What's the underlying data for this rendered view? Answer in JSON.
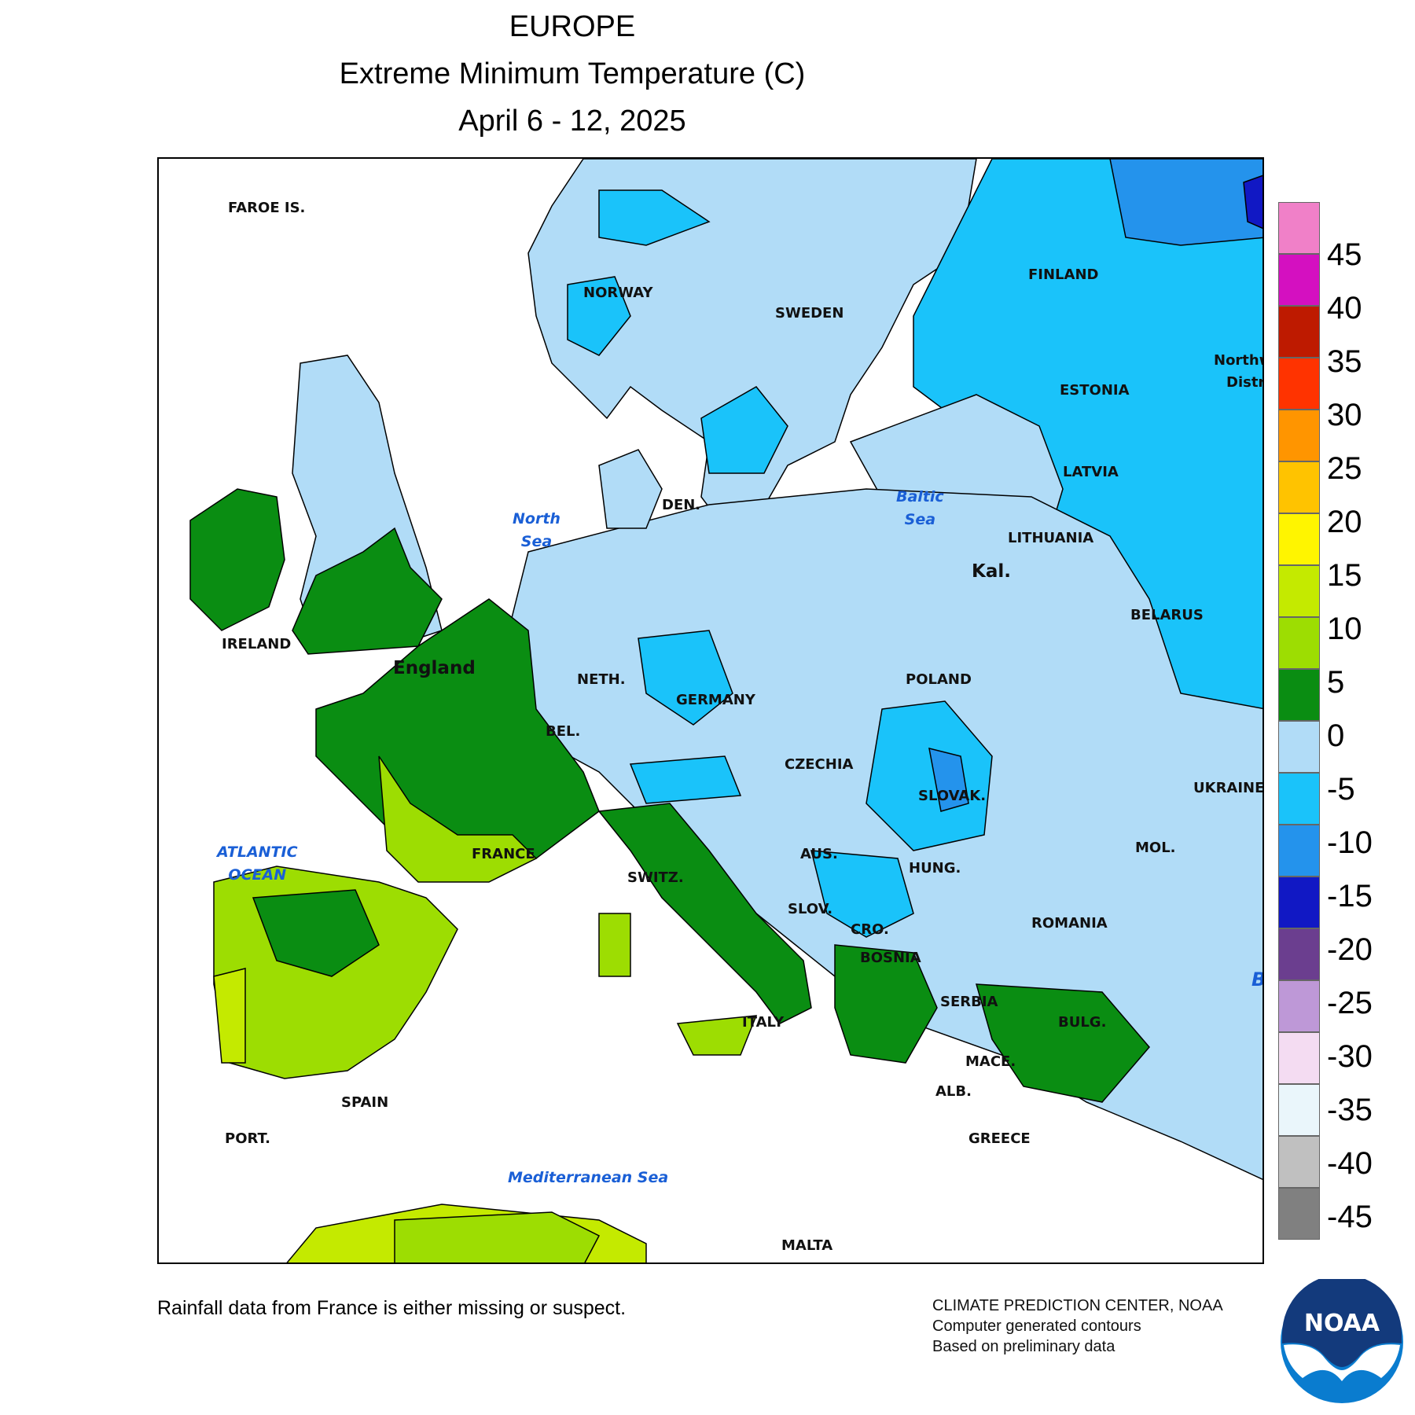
{
  "title": {
    "line1": "EUROPE",
    "line2": "Extreme Minimum Temperature (C)",
    "line3": "April 6 - 12, 2025"
  },
  "map": {
    "countries": [
      "FAROE IS.",
      "NORWAY",
      "SWEDEN",
      "FINLAND",
      "ESTONIA",
      "LATVIA",
      "LITHUANIA",
      "Kal.",
      "BELARUS",
      "DEN.",
      "IRELAND",
      "England",
      "NETH.",
      "BEL.",
      "GERMANY",
      "POLAND",
      "CZECHIA",
      "SLOVAK.",
      "UKRAINE",
      "MOL.",
      "AUS.",
      "HUNG.",
      "SWITZ.",
      "FRANCE",
      "SLOV.",
      "CRO.",
      "BOSNIA",
      "ROMANIA",
      "SERBIA",
      "BULG.",
      "ITALY",
      "MACE.",
      "ALB.",
      "GREECE",
      "SPAIN",
      "PORT.",
      "MALTA",
      "Northw",
      "Distri",
      "B"
    ],
    "seas": {
      "north_sea": [
        "North",
        "Sea"
      ],
      "baltic_sea": [
        "Baltic",
        "Sea"
      ],
      "atlantic": [
        "ATLANTIC",
        "OCEAN"
      ],
      "med": [
        "Mediterranean Sea"
      ]
    },
    "fill_colors": {
      "water": "#ffffff",
      "cold_light": "#b1dcf7",
      "cold_mid": "#1ac3fa",
      "cold_deep": "#2493ec",
      "very_cold": "#1118c4",
      "mild": "#0a8d12",
      "warm": "#9ddd02",
      "warmer": "#c4ea00"
    }
  },
  "legend": {
    "colors": [
      "#f080c8",
      "#d410c0",
      "#be1a00",
      "#ff3300",
      "#ff9500",
      "#ffc300",
      "#fff500",
      "#c4ea00",
      "#9ddd02",
      "#0a8d12",
      "#b1dcf7",
      "#1ac3fa",
      "#2493ec",
      "#1118c4",
      "#6b3e8f",
      "#be98d7",
      "#f4dcf2",
      "#eaf6fb",
      "#c0c0c0",
      "#808080"
    ],
    "labels": [
      "45",
      "40",
      "35",
      "30",
      "25",
      "20",
      "15",
      "10",
      "5",
      "0",
      "-5",
      "-10",
      "-15",
      "-20",
      "-25",
      "-30",
      "-35",
      "-40",
      "-45"
    ]
  },
  "footer": {
    "note": "Rainfall data from France is either missing or suspect.",
    "credit_line1": "CLIMATE PREDICTION CENTER, NOAA",
    "credit_line2": "Computer generated contours",
    "credit_line3": "Based on preliminary data",
    "logo_text": "NOAA"
  }
}
